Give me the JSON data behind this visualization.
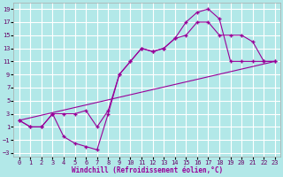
{
  "xlabel": "Windchill (Refroidissement éolien,°C)",
  "bg_color": "#b2e8e8",
  "line_color": "#990099",
  "grid_color": "#ffffff",
  "xlim": [
    -0.5,
    23.5
  ],
  "ylim": [
    -3.5,
    20
  ],
  "xticks": [
    0,
    1,
    2,
    3,
    4,
    5,
    6,
    7,
    8,
    9,
    10,
    11,
    12,
    13,
    14,
    15,
    16,
    17,
    18,
    19,
    20,
    21,
    22,
    23
  ],
  "yticks": [
    -3,
    -1,
    1,
    3,
    5,
    7,
    9,
    11,
    13,
    15,
    17,
    19
  ],
  "series1": {
    "x": [
      0,
      1,
      2,
      3,
      4,
      5,
      6,
      7,
      8,
      9,
      10,
      11,
      12,
      13,
      14,
      15,
      16,
      17,
      18,
      19,
      20,
      21,
      22,
      23
    ],
    "y": [
      2,
      1,
      1,
      3,
      -0.5,
      -1.5,
      -2.0,
      -2.5,
      3.0,
      9,
      11,
      13,
      12.5,
      13,
      14.5,
      17,
      18.5,
      19,
      17.5,
      11,
      11,
      11,
      11,
      11
    ]
  },
  "series2": {
    "x": [
      0,
      1,
      2,
      3,
      4,
      5,
      6,
      7,
      8,
      9,
      10,
      11,
      12,
      13,
      14,
      15,
      16,
      17,
      18,
      19,
      20,
      21,
      22,
      23
    ],
    "y": [
      2,
      1,
      1,
      3,
      3.0,
      3.0,
      3.5,
      1.0,
      3.5,
      9,
      11,
      13,
      12.5,
      13,
      14.5,
      15,
      17,
      17,
      15,
      15,
      15,
      14,
      11,
      11
    ]
  },
  "series3": {
    "x": [
      0,
      23
    ],
    "y": [
      2,
      11
    ]
  }
}
